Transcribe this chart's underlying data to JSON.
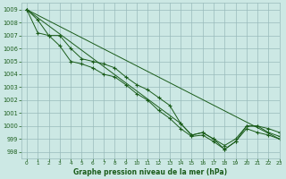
{
  "title": "Graphe pression niveau de la mer (hPa)",
  "bg_color": "#cce8e4",
  "grid_color": "#99bbbb",
  "line_color": "#1a5c1a",
  "xlim": [
    -0.5,
    23
  ],
  "ylim": [
    997.5,
    1009.5
  ],
  "xticks": [
    0,
    1,
    2,
    3,
    4,
    5,
    6,
    7,
    8,
    9,
    10,
    11,
    12,
    13,
    14,
    15,
    16,
    17,
    18,
    19,
    20,
    21,
    22,
    23
  ],
  "yticks": [
    998,
    999,
    1000,
    1001,
    1002,
    1003,
    1004,
    1005,
    1006,
    1007,
    1008,
    1009
  ],
  "series": [
    {
      "x": [
        0,
        1,
        2,
        3,
        4,
        5,
        6,
        7,
        8,
        9,
        10,
        11,
        12,
        13,
        14,
        15,
        16,
        17,
        18,
        19,
        20,
        21,
        22,
        23
      ],
      "y": [
        1009,
        1008.2,
        1007.0,
        1007.0,
        1006.0,
        1005.2,
        1005.0,
        1004.8,
        1004.5,
        1003.8,
        1003.2,
        1002.8,
        1002.2,
        1001.6,
        1000.2,
        999.3,
        999.5,
        999.0,
        998.5,
        999.0,
        1000.0,
        1000.0,
        999.5,
        999.2
      ],
      "has_markers": true
    },
    {
      "x": [
        0,
        1,
        2,
        3,
        4,
        5,
        6,
        7,
        8,
        9,
        10,
        11,
        12,
        13,
        14,
        15,
        16,
        17,
        18,
        19,
        20,
        21,
        22,
        23
      ],
      "y": [
        1009,
        1007.2,
        1007.0,
        1006.2,
        1005.0,
        1004.8,
        1004.5,
        1004.0,
        1003.8,
        1003.2,
        1002.5,
        1002.0,
        1001.2,
        1000.6,
        999.8,
        999.2,
        999.3,
        998.8,
        998.2,
        998.8,
        999.8,
        999.5,
        999.3,
        999.0
      ],
      "has_markers": true
    },
    {
      "x": [
        0,
        23
      ],
      "y": [
        1009,
        999.0
      ],
      "has_markers": false
    },
    {
      "x": [
        0,
        14,
        15,
        16,
        17,
        18,
        19,
        20,
        21,
        22,
        23
      ],
      "y": [
        1009,
        1000.2,
        999.3,
        999.5,
        999.0,
        998.2,
        998.8,
        1000.0,
        1000.0,
        999.8,
        999.5
      ],
      "has_markers": true
    }
  ]
}
